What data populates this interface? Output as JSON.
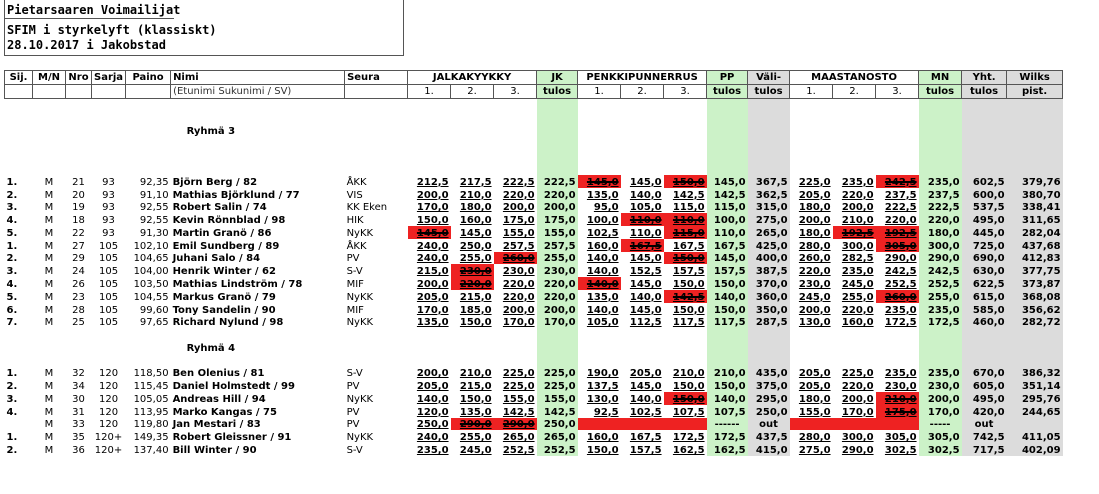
{
  "header": {
    "line1": "Pietarsaaren Voimailijat",
    "line2": "SFIM i styrkelyft  (klassiskt)",
    "line3": "28.10.2017 i Jakobstad"
  },
  "columns": {
    "sij": "Sij.",
    "mn": "M/N",
    "nro": "Nro",
    "sarja": "Sarja",
    "paino": "Paino",
    "nimi": "Nimi",
    "nimi_sub": "(Etunimi Sukunimi / SV)",
    "seura": "Seura",
    "jalkakyykky": "JALKAKYYKKY",
    "jk": "JK",
    "jk_sub": "tulos",
    "penkki": "PENKKIPUNNERRUS",
    "pp": "PP",
    "pp_sub": "tulos",
    "vali": "Väli-",
    "vali_sub": "tulos",
    "maasta": "MAASTANOSTO",
    "mnc": "MN",
    "mnc_sub": "tulos",
    "yht": "Yht.",
    "yht_sub": "tulos",
    "wilks": "Wilks",
    "wilks_sub": "pist.",
    "a1": "1.",
    "a2": "2.",
    "a3": "3."
  },
  "groups": [
    "Ryhmä 3",
    "Ryhmä 4"
  ],
  "rows_g3": [
    {
      "sij": "1.",
      "mn": "M",
      "nro": "21",
      "sarja": "93",
      "paino": "92,35",
      "name": "Björn Berg / 82",
      "club": "ÅKK",
      "jk": [
        "212,5",
        "217,5",
        "222,5"
      ],
      "jkt": "222,5",
      "pp": [
        "145,0",
        "145,0",
        "150,0"
      ],
      "ppt": "145,0",
      "vali": "367,5",
      "ma": [
        "225,0",
        "235,0",
        "242,5"
      ],
      "mnt": "235,0",
      "yht": "602,5",
      "wilks": "379,76",
      "fail": [
        0,
        0,
        0,
        1,
        0,
        1,
        0,
        0,
        1
      ]
    },
    {
      "sij": "2.",
      "mn": "M",
      "nro": "20",
      "sarja": "93",
      "paino": "91,10",
      "name": "Mathias Björklund / 77",
      "club": "VIS",
      "jk": [
        "200,0",
        "210,0",
        "220,0"
      ],
      "jkt": "220,0",
      "pp": [
        "135,0",
        "140,0",
        "142,5"
      ],
      "ppt": "142,5",
      "vali": "362,5",
      "ma": [
        "205,0",
        "220,0",
        "237,5"
      ],
      "mnt": "237,5",
      "yht": "600,0",
      "wilks": "380,70",
      "fail": [
        0,
        0,
        0,
        0,
        0,
        0,
        0,
        0,
        0
      ]
    },
    {
      "sij": "3.",
      "mn": "M",
      "nro": "19",
      "sarja": "93",
      "paino": "92,55",
      "name": "Robert Salin / 74",
      "club": "KK Eken",
      "jk": [
        "170,0",
        "180,0",
        "200,0"
      ],
      "jkt": "200,0",
      "pp": [
        "95,0",
        "105,0",
        "115,0"
      ],
      "ppt": "115,0",
      "vali": "315,0",
      "ma": [
        "180,0",
        "200,0",
        "222,5"
      ],
      "mnt": "222,5",
      "yht": "537,5",
      "wilks": "338,41",
      "fail": [
        0,
        0,
        0,
        0,
        0,
        0,
        0,
        0,
        0
      ]
    },
    {
      "sij": "4.",
      "mn": "M",
      "nro": "18",
      "sarja": "93",
      "paino": "92,55",
      "name": "Kevin Rönnblad / 98",
      "club": "HIK",
      "jk": [
        "150,0",
        "160,0",
        "175,0"
      ],
      "jkt": "175,0",
      "pp": [
        "100,0",
        "110,0",
        "110,0"
      ],
      "ppt": "100,0",
      "vali": "275,0",
      "ma": [
        "200,0",
        "210,0",
        "220,0"
      ],
      "mnt": "220,0",
      "yht": "495,0",
      "wilks": "311,65",
      "fail": [
        0,
        0,
        0,
        0,
        1,
        1,
        0,
        0,
        0
      ]
    },
    {
      "sij": "5.",
      "mn": "M",
      "nro": "22",
      "sarja": "93",
      "paino": "91,30",
      "name": "Martin Granö / 86",
      "club": "NyKK",
      "jk": [
        "145,0",
        "145,0",
        "155,0"
      ],
      "jkt": "155,0",
      "pp": [
        "102,5",
        "110,0",
        "115,0"
      ],
      "ppt": "110,0",
      "vali": "265,0",
      "ma": [
        "180,0",
        "192,5",
        "192,5"
      ],
      "mnt": "180,0",
      "yht": "445,0",
      "wilks": "282,04",
      "fail": [
        1,
        0,
        0,
        0,
        0,
        1,
        0,
        1,
        1
      ]
    },
    {
      "sij": "1.",
      "mn": "M",
      "nro": "27",
      "sarja": "105",
      "paino": "102,10",
      "name": "Emil Sundberg / 89",
      "club": "ÅKK",
      "jk": [
        "240,0",
        "250,0",
        "257,5"
      ],
      "jkt": "257,5",
      "pp": [
        "160,0",
        "167,5",
        "167,5"
      ],
      "ppt": "167,5",
      "vali": "425,0",
      "ma": [
        "280,0",
        "300,0",
        "305,0"
      ],
      "mnt": "300,0",
      "yht": "725,0",
      "wilks": "437,68",
      "fail": [
        0,
        0,
        0,
        0,
        1,
        0,
        0,
        0,
        1
      ]
    },
    {
      "sij": "2.",
      "mn": "M",
      "nro": "29",
      "sarja": "105",
      "paino": "104,65",
      "name": "Juhani Salo / 84",
      "club": "PV",
      "jk": [
        "240,0",
        "255,0",
        "260,0"
      ],
      "jkt": "255,0",
      "pp": [
        "140,0",
        "145,0",
        "150,0"
      ],
      "ppt": "145,0",
      "vali": "400,0",
      "ma": [
        "260,0",
        "282,5",
        "290,0"
      ],
      "mnt": "290,0",
      "yht": "690,0",
      "wilks": "412,83",
      "fail": [
        0,
        0,
        1,
        0,
        0,
        1,
        0,
        0,
        0
      ]
    },
    {
      "sij": "3.",
      "mn": "M",
      "nro": "24",
      "sarja": "105",
      "paino": "104,00",
      "name": "Henrik Winter / 62",
      "club": "S-V",
      "jk": [
        "215,0",
        "230,0",
        "230,0"
      ],
      "jkt": "230,0",
      "pp": [
        "140,0",
        "152,5",
        "157,5"
      ],
      "ppt": "157,5",
      "vali": "387,5",
      "ma": [
        "220,0",
        "235,0",
        "242,5"
      ],
      "mnt": "242,5",
      "yht": "630,0",
      "wilks": "377,75",
      "fail": [
        0,
        1,
        0,
        0,
        0,
        0,
        0,
        0,
        0
      ]
    },
    {
      "sij": "4.",
      "mn": "M",
      "nro": "26",
      "sarja": "105",
      "paino": "103,50",
      "name": "Mathias Lindström / 78",
      "club": "MIF",
      "jk": [
        "200,0",
        "220,0",
        "220,0"
      ],
      "jkt": "220,0",
      "pp": [
        "140,0",
        "145,0",
        "150,0"
      ],
      "ppt": "150,0",
      "vali": "370,0",
      "ma": [
        "230,0",
        "245,0",
        "252,5"
      ],
      "mnt": "252,5",
      "yht": "622,5",
      "wilks": "373,87",
      "fail": [
        0,
        1,
        0,
        1,
        0,
        0,
        0,
        0,
        0
      ]
    },
    {
      "sij": "5.",
      "mn": "M",
      "nro": "23",
      "sarja": "105",
      "paino": "104,55",
      "name": "Markus Granö / 79",
      "club": "NyKK",
      "jk": [
        "205,0",
        "215,0",
        "220,0"
      ],
      "jkt": "220,0",
      "pp": [
        "135,0",
        "140,0",
        "142,5"
      ],
      "ppt": "140,0",
      "vali": "360,0",
      "ma": [
        "245,0",
        "255,0",
        "260,0"
      ],
      "mnt": "255,0",
      "yht": "615,0",
      "wilks": "368,08",
      "fail": [
        0,
        0,
        0,
        0,
        0,
        1,
        0,
        0,
        1
      ]
    },
    {
      "sij": "6.",
      "mn": "M",
      "nro": "28",
      "sarja": "105",
      "paino": "99,60",
      "name": "Tony Sandelin / 90",
      "club": "MIF",
      "jk": [
        "170,0",
        "185,0",
        "200,0"
      ],
      "jkt": "200,0",
      "pp": [
        "140,0",
        "145,0",
        "150,0"
      ],
      "ppt": "150,0",
      "vali": "350,0",
      "ma": [
        "200,0",
        "220,0",
        "235,0"
      ],
      "mnt": "235,0",
      "yht": "585,0",
      "wilks": "356,62",
      "fail": [
        0,
        0,
        0,
        0,
        0,
        0,
        0,
        0,
        0
      ]
    },
    {
      "sij": "7.",
      "mn": "M",
      "nro": "25",
      "sarja": "105",
      "paino": "97,65",
      "name": "Richard Nylund / 98",
      "club": "NyKK",
      "jk": [
        "135,0",
        "150,0",
        "170,0"
      ],
      "jkt": "170,0",
      "pp": [
        "105,0",
        "112,5",
        "117,5"
      ],
      "ppt": "117,5",
      "vali": "287,5",
      "ma": [
        "130,0",
        "160,0",
        "172,5"
      ],
      "mnt": "172,5",
      "yht": "460,0",
      "wilks": "282,72",
      "fail": [
        0,
        0,
        0,
        0,
        0,
        0,
        0,
        0,
        0
      ]
    }
  ],
  "rows_g4": [
    {
      "sij": "1.",
      "mn": "M",
      "nro": "32",
      "sarja": "120",
      "paino": "118,50",
      "name": "Ben Olenius / 81",
      "club": "S-V",
      "jk": [
        "200,0",
        "210,0",
        "225,0"
      ],
      "jkt": "225,0",
      "pp": [
        "190,0",
        "205,0",
        "210,0"
      ],
      "ppt": "210,0",
      "vali": "435,0",
      "ma": [
        "205,0",
        "225,0",
        "235,0"
      ],
      "mnt": "235,0",
      "yht": "670,0",
      "wilks": "386,32",
      "fail": [
        0,
        0,
        0,
        0,
        0,
        0,
        0,
        0,
        0
      ]
    },
    {
      "sij": "2.",
      "mn": "M",
      "nro": "34",
      "sarja": "120",
      "paino": "115,45",
      "name": "Daniel Holmstedt / 99",
      "club": "PV",
      "jk": [
        "205,0",
        "215,0",
        "225,0"
      ],
      "jkt": "225,0",
      "pp": [
        "137,5",
        "145,0",
        "150,0"
      ],
      "ppt": "150,0",
      "vali": "375,0",
      "ma": [
        "205,0",
        "220,0",
        "230,0"
      ],
      "mnt": "230,0",
      "yht": "605,0",
      "wilks": "351,14",
      "fail": [
        0,
        0,
        0,
        0,
        0,
        0,
        0,
        0,
        0
      ]
    },
    {
      "sij": "3.",
      "mn": "M",
      "nro": "30",
      "sarja": "120",
      "paino": "105,05",
      "name": "Andreas Hill / 94",
      "club": "NyKK",
      "jk": [
        "140,0",
        "150,0",
        "155,0"
      ],
      "jkt": "155,0",
      "pp": [
        "130,0",
        "140,0",
        "150,0"
      ],
      "ppt": "140,0",
      "vali": "295,0",
      "ma": [
        "180,0",
        "200,0",
        "210,0"
      ],
      "mnt": "200,0",
      "yht": "495,0",
      "wilks": "295,76",
      "fail": [
        0,
        0,
        0,
        0,
        0,
        1,
        0,
        0,
        1
      ]
    },
    {
      "sij": "4.",
      "mn": "M",
      "nro": "31",
      "sarja": "120",
      "paino": "113,95",
      "name": "Marko Kangas / 75",
      "club": "PV",
      "jk": [
        "120,0",
        "135,0",
        "142,5"
      ],
      "jkt": "142,5",
      "pp": [
        "92,5",
        "102,5",
        "107,5"
      ],
      "ppt": "107,5",
      "vali": "250,0",
      "ma": [
        "155,0",
        "170,0",
        "175,0"
      ],
      "mnt": "170,0",
      "yht": "420,0",
      "wilks": "244,65",
      "fail": [
        0,
        0,
        0,
        0,
        0,
        0,
        0,
        0,
        1
      ]
    },
    {
      "sij": "",
      "mn": "M",
      "nro": "33",
      "sarja": "120",
      "paino": "119,80",
      "name": "Jan Mestari / 83",
      "club": "PV",
      "jk": [
        "250,0",
        "290,0",
        "290,0"
      ],
      "jkt": "250,0",
      "pp": [
        "",
        "",
        ""
      ],
      "ppt": "------",
      "vali": "out",
      "ma": [
        "",
        "",
        ""
      ],
      "mnt": "-----",
      "yht": "out",
      "wilks": "",
      "fail": [
        0,
        1,
        1,
        1,
        1,
        1,
        1,
        1,
        1
      ]
    },
    {
      "sij": "1.",
      "mn": "M",
      "nro": "35",
      "sarja": "120+",
      "paino": "149,35",
      "name": "Robert Gleissner / 91",
      "club": "NyKK",
      "jk": [
        "240,0",
        "255,0",
        "265,0"
      ],
      "jkt": "265,0",
      "pp": [
        "160,0",
        "167,5",
        "172,5"
      ],
      "ppt": "172,5",
      "vali": "437,5",
      "ma": [
        "280,0",
        "300,0",
        "305,0"
      ],
      "mnt": "305,0",
      "yht": "742,5",
      "wilks": "411,05",
      "fail": [
        0,
        0,
        0,
        0,
        0,
        0,
        0,
        0,
        0
      ]
    },
    {
      "sij": "2.",
      "mn": "M",
      "nro": "36",
      "sarja": "120+",
      "paino": "137,40",
      "name": "Bill Winter / 90",
      "club": "S-V",
      "jk": [
        "235,0",
        "245,0",
        "252,5"
      ],
      "jkt": "252,5",
      "pp": [
        "150,0",
        "157,5",
        "162,5"
      ],
      "ppt": "162,5",
      "vali": "415,0",
      "ma": [
        "275,0",
        "290,0",
        "302,5"
      ],
      "mnt": "302,5",
      "yht": "717,5",
      "wilks": "402,09",
      "fail": [
        0,
        0,
        0,
        0,
        0,
        0,
        0,
        0,
        0
      ]
    }
  ]
}
